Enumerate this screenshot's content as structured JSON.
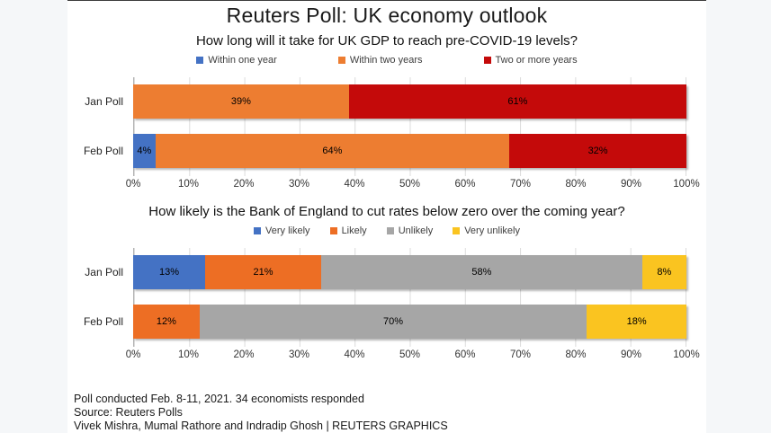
{
  "page": {
    "title": "Reuters Poll: UK economy outlook"
  },
  "colors": {
    "blue": "#4472C4",
    "orange": "#ED7D31",
    "dark_red": "#C40A0A",
    "gray": "#A6A6A6",
    "yellow": "#FAC420",
    "gridline": "#dcdcdc",
    "panel_bg": "#ffffff",
    "page_bg": "#f5f7f9"
  },
  "chart_data": [
    {
      "type": "bar",
      "stacked": true,
      "orientation": "horizontal",
      "title": "How long will it take for UK GDP to reach pre-COVID-19 levels?",
      "categories": [
        "Jan Poll",
        "Feb Poll"
      ],
      "series": [
        {
          "name": "Within one year",
          "color": "#4472C4",
          "values": [
            0,
            4
          ]
        },
        {
          "name": "Within two years",
          "color": "#ED7D31",
          "values": [
            39,
            64
          ]
        },
        {
          "name": "Two or more years",
          "color": "#C40A0A",
          "values": [
            61,
            32
          ]
        }
      ],
      "xlim": [
        0,
        100
      ],
      "x_ticks": [
        "0%",
        "10%",
        "20%",
        "30%",
        "40%",
        "50%",
        "60%",
        "70%",
        "80%",
        "90%",
        "100%"
      ],
      "legend_position": "top",
      "grid": true,
      "data_label_format": "percent"
    },
    {
      "type": "bar",
      "stacked": true,
      "orientation": "horizontal",
      "title": "How likely is the Bank of England to cut rates below zero over the coming year?",
      "categories": [
        "Jan Poll",
        "Feb Poll"
      ],
      "series": [
        {
          "name": "Very likely",
          "color": "#4472C4",
          "values": [
            13,
            0
          ]
        },
        {
          "name": "Likely",
          "color": "#ED6E24",
          "values": [
            21,
            12
          ]
        },
        {
          "name": "Unlikely",
          "color": "#A6A6A6",
          "values": [
            58,
            70
          ]
        },
        {
          "name": "Very unlikely",
          "color": "#FAC420",
          "values": [
            8,
            18
          ]
        }
      ],
      "xlim": [
        0,
        100
      ],
      "x_ticks": [
        "0%",
        "10%",
        "20%",
        "30%",
        "40%",
        "50%",
        "60%",
        "70%",
        "80%",
        "90%",
        "100%"
      ],
      "legend_position": "top",
      "grid": true,
      "data_label_format": "percent"
    }
  ],
  "footer": {
    "lines": [
      "Poll conducted Feb. 8-11, 2021. 34 economists responded",
      "Source: Reuters Polls",
      "Vivek Mishra, Mumal Rathore and Indradip Ghosh  | REUTERS GRAPHICS"
    ]
  }
}
